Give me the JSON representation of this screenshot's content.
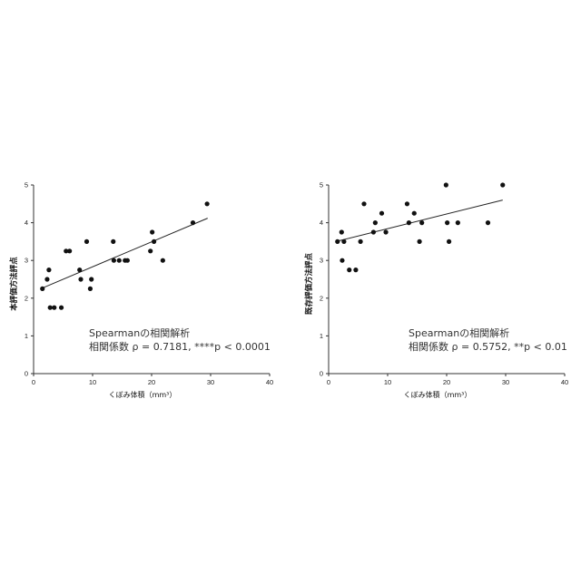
{
  "chart_data": [
    {
      "type": "scatter",
      "title": "",
      "xlabel": "くぼみ体積（mm³）",
      "ylabel": "本評価方法評点",
      "xlim": [
        0,
        40
      ],
      "ylim": [
        0,
        5
      ],
      "xticks": [
        "0",
        "10",
        "20",
        "30",
        "40"
      ],
      "yticks": [
        "0",
        "1",
        "2",
        "3",
        "4",
        "5"
      ],
      "grid": false,
      "legend": "none",
      "points": [
        {
          "x": 1.5,
          "y": 2.25
        },
        {
          "x": 2.3,
          "y": 2.5
        },
        {
          "x": 2.6,
          "y": 2.75
        },
        {
          "x": 2.8,
          "y": 1.75
        },
        {
          "x": 3.5,
          "y": 1.75
        },
        {
          "x": 4.7,
          "y": 1.75
        },
        {
          "x": 5.5,
          "y": 3.25
        },
        {
          "x": 6.1,
          "y": 3.25
        },
        {
          "x": 7.8,
          "y": 2.75
        },
        {
          "x": 8.0,
          "y": 2.5
        },
        {
          "x": 9.0,
          "y": 3.5
        },
        {
          "x": 9.6,
          "y": 2.25
        },
        {
          "x": 9.8,
          "y": 2.5
        },
        {
          "x": 13.5,
          "y": 3.5
        },
        {
          "x": 13.6,
          "y": 3.0
        },
        {
          "x": 14.5,
          "y": 3.0
        },
        {
          "x": 15.5,
          "y": 3.0
        },
        {
          "x": 15.9,
          "y": 3.0
        },
        {
          "x": 19.8,
          "y": 3.25
        },
        {
          "x": 20.1,
          "y": 3.75
        },
        {
          "x": 20.4,
          "y": 3.5
        },
        {
          "x": 21.9,
          "y": 3.0
        },
        {
          "x": 27.0,
          "y": 4.0
        },
        {
          "x": 29.4,
          "y": 4.5
        }
      ],
      "trendline": {
        "x": [
          1.2,
          29.5
        ],
        "y": [
          2.25,
          4.12
        ]
      },
      "annotation": [
        "Spearmanの相関解析",
        "相関係数 ρ = 0.7181, ****p < 0.0001"
      ]
    },
    {
      "type": "scatter",
      "title": "",
      "xlabel": "くぼみ体積（mm³）",
      "ylabel": "既存評価方法評点",
      "xlim": [
        0,
        40
      ],
      "ylim": [
        0,
        5
      ],
      "xticks": [
        "0",
        "10",
        "20",
        "30",
        "40"
      ],
      "yticks": [
        "0",
        "1",
        "2",
        "3",
        "4",
        "5"
      ],
      "grid": false,
      "legend": "none",
      "points": [
        {
          "x": 1.5,
          "y": 3.5
        },
        {
          "x": 2.2,
          "y": 3.75
        },
        {
          "x": 2.3,
          "y": 3.0
        },
        {
          "x": 2.6,
          "y": 3.5
        },
        {
          "x": 3.5,
          "y": 2.75
        },
        {
          "x": 4.6,
          "y": 2.75
        },
        {
          "x": 5.4,
          "y": 3.5
        },
        {
          "x": 6.0,
          "y": 4.5
        },
        {
          "x": 7.6,
          "y": 3.75
        },
        {
          "x": 7.9,
          "y": 4.0
        },
        {
          "x": 9.0,
          "y": 4.25
        },
        {
          "x": 9.7,
          "y": 3.75
        },
        {
          "x": 13.3,
          "y": 4.5
        },
        {
          "x": 13.6,
          "y": 4.0
        },
        {
          "x": 14.5,
          "y": 4.25
        },
        {
          "x": 15.4,
          "y": 3.5
        },
        {
          "x": 15.8,
          "y": 4.0
        },
        {
          "x": 19.9,
          "y": 5.0
        },
        {
          "x": 20.1,
          "y": 4.0
        },
        {
          "x": 20.4,
          "y": 3.5
        },
        {
          "x": 21.9,
          "y": 4.0
        },
        {
          "x": 27.0,
          "y": 4.0
        },
        {
          "x": 29.5,
          "y": 5.0
        }
      ],
      "trendline": {
        "x": [
          1.2,
          29.5
        ],
        "y": [
          3.5,
          4.6
        ]
      },
      "annotation": [
        "Spearmanの相関解析",
        "相関係数 ρ = 0.5752, **p < 0.01"
      ]
    }
  ]
}
